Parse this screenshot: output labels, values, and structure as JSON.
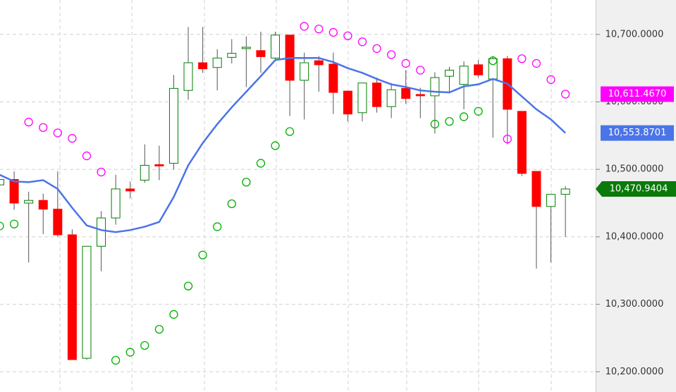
{
  "chart_data": {
    "type": "candlestick",
    "categories": [
      null,
      null,
      null,
      null,
      null,
      null,
      null,
      null,
      null,
      null,
      null,
      null,
      null,
      null,
      null,
      null,
      null,
      null,
      null,
      null,
      null,
      null,
      null,
      null,
      null,
      null,
      null,
      null,
      null,
      null,
      null,
      null,
      null,
      null,
      null,
      null,
      null,
      null,
      null,
      null
    ],
    "open": [
      10477,
      10485,
      10450,
      10454,
      10441,
      10403,
      10220,
      10386,
      10428,
      10471,
      10484,
      10507,
      10509,
      10617,
      10658,
      10651,
      10666,
      10679,
      10676,
      10665,
      10699,
      10632,
      10661,
      10656,
      10616,
      10584,
      10628,
      10593,
      10620,
      10611,
      10609,
      10638,
      10626,
      10655,
      10634,
      10664,
      10586,
      10497,
      10445,
      10463
    ],
    "high": [
      10490,
      10497,
      10467,
      10464,
      10497,
      10411,
      10386,
      10438,
      10492,
      10482,
      10537,
      10535,
      10640,
      10711,
      10711,
      10678,
      10693,
      10697,
      10704,
      10704,
      10699,
      10673,
      10668,
      10673,
      10616,
      10628,
      10636,
      10628,
      10647,
      10621,
      10644,
      10652,
      10660,
      10662,
      10668,
      10668,
      10586,
      10497,
      10463,
      10475
    ],
    "low": [
      10470,
      10440,
      10362,
      10404,
      10400,
      10218,
      10218,
      10349,
      10418,
      10457,
      10480,
      10484,
      10500,
      10603,
      10643,
      10617,
      10657,
      10622,
      10643,
      10660,
      10579,
      10574,
      10615,
      10582,
      10571,
      10571,
      10584,
      10576,
      10597,
      10576,
      10553,
      10615,
      10589,
      10636,
      10547,
      10537,
      10490,
      10353,
      10362,
      10400
    ],
    "close": [
      10485,
      10450,
      10454,
      10441,
      10403,
      10218,
      10386,
      10428,
      10471,
      10468,
      10506,
      10505,
      10620,
      10658,
      10649,
      10665,
      10672,
      10681,
      10667,
      10699,
      10632,
      10658,
      10655,
      10614,
      10582,
      10628,
      10593,
      10618,
      10605,
      10609,
      10636,
      10647,
      10653,
      10640,
      10664,
      10589,
      10494,
      10445,
      10463,
      10470.9404
    ],
    "close_label": "10,470.9404",
    "up_color": "#008000",
    "down_color": "#ff0000",
    "overlays": [
      {
        "type": "line",
        "color": "#4a74e8",
        "value_label": "10,553.8701",
        "values": [
          10492,
          10482,
          10481,
          10484,
          10471,
          10443,
          10417,
          10410,
          10407,
          10410,
          10415,
          10422,
          10459,
          10506,
          10539,
          10567,
          10592,
          10615,
          10638,
          10662,
          10665,
          10665,
          10665,
          10659,
          10650,
          10643,
          10634,
          10626,
          10622,
          10617,
          10615,
          10614,
          10623,
          10626,
          10634,
          10627,
          10608,
          10589,
          10574,
          10553.8701
        ]
      },
      {
        "type": "sar",
        "color": "#ff00ff",
        "value_label": "10,611.4670",
        "values": [
          10416,
          10419,
          10570,
          10562,
          10554,
          10546,
          10520,
          10496,
          10217,
          10229,
          10239,
          10263,
          10285,
          10327,
          10373,
          10415,
          10449,
          10481,
          10509,
          10535,
          10556,
          10712,
          10708,
          10703,
          10698,
          10689,
          10679,
          10670,
          10657,
          10647,
          10567,
          10571,
          10578,
          10586,
          10661,
          10545,
          10664,
          10657,
          10633,
          10611.467
        ],
        "colors": [
          "#00b000",
          "#00b000",
          "#ff00ff",
          "#ff00ff",
          "#ff00ff",
          "#ff00ff",
          "#ff00ff",
          "#ff00ff",
          "#00b000",
          "#00b000",
          "#00b000",
          "#00b000",
          "#00b000",
          "#00b000",
          "#00b000",
          "#00b000",
          "#00b000",
          "#00b000",
          "#00b000",
          "#00b000",
          "#00b000",
          "#ff00ff",
          "#ff00ff",
          "#ff00ff",
          "#ff00ff",
          "#ff00ff",
          "#ff00ff",
          "#ff00ff",
          "#ff00ff",
          "#ff00ff",
          "#00b000",
          "#00b000",
          "#00b000",
          "#00b000",
          "#00b000",
          "#ff00ff",
          "#ff00ff",
          "#ff00ff",
          "#ff00ff",
          "#ff00ff"
        ]
      }
    ],
    "ylim": [
      10170,
      10751
    ],
    "yticks": [
      {
        "value": 10200,
        "label": "10,200.0000"
      },
      {
        "value": 10300,
        "label": "10,300.0000"
      },
      {
        "value": 10400,
        "label": "10,400.0000"
      },
      {
        "value": 10500,
        "label": "10,500.0000"
      },
      {
        "value": 10600,
        "label": "10,600.0000"
      },
      {
        "value": 10700,
        "label": "10,700.0000"
      }
    ],
    "grid": true
  }
}
